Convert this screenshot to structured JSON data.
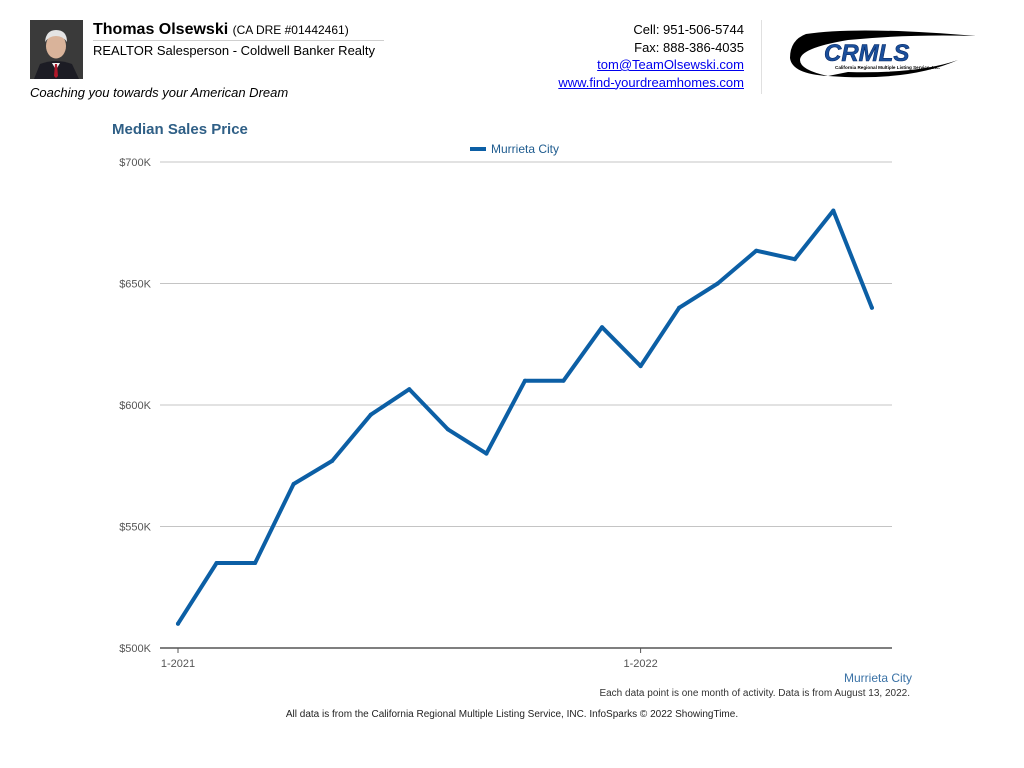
{
  "agent": {
    "name": "Thomas Olsewski",
    "dre": "(CA DRE #01442461)",
    "title": "REALTOR Salesperson - Coldwell Banker Realty",
    "tagline": "Coaching you towards your American Dream"
  },
  "contact": {
    "cell": "Cell: 951-506-5744",
    "fax": "Fax: 888-386-4035",
    "email": "tom@TeamOlsewski.com",
    "website": "www.find-yourdreamhomes.com"
  },
  "logo": {
    "text": "CRMLS",
    "subtext": "California Regional Multiple Listing Service, Inc."
  },
  "footer": {
    "series_tag": "Murrieta City",
    "note": "Each data point is one month of activity. Data is from August 13, 2022.",
    "source": "All data is from the California Regional Multiple Listing Service, INC. InfoSparks © 2022 ShowingTime."
  },
  "chart_data": {
    "type": "line",
    "title": "Median Sales Price",
    "xlabel": "",
    "ylabel": "",
    "x": [
      "2021-01",
      "2021-02",
      "2021-03",
      "2021-04",
      "2021-05",
      "2021-06",
      "2021-07",
      "2021-08",
      "2021-09",
      "2021-10",
      "2021-11",
      "2021-12",
      "2022-01",
      "2022-02",
      "2022-03",
      "2022-04",
      "2022-05",
      "2022-06",
      "2022-07"
    ],
    "series": [
      {
        "name": "Murrieta City",
        "color": "#0c5fa5",
        "values": [
          510000,
          535000,
          535000,
          567500,
          577000,
          596000,
          606500,
          590000,
          580000,
          610000,
          610000,
          632000,
          616000,
          640000,
          650000,
          663500,
          660000,
          680000,
          640000
        ]
      }
    ],
    "ylim": [
      500000,
      700000
    ],
    "yticks": [
      500000,
      550000,
      600000,
      650000,
      700000
    ],
    "ytick_labels": [
      "$500K",
      "$550K",
      "$600K",
      "$650K",
      "$700K"
    ],
    "xtick_labels": [
      {
        "x": "2021-01",
        "label": "1-2021"
      },
      {
        "x": "2022-01",
        "label": "1-2022"
      }
    ],
    "legend_position": "top-center",
    "grid": true
  }
}
